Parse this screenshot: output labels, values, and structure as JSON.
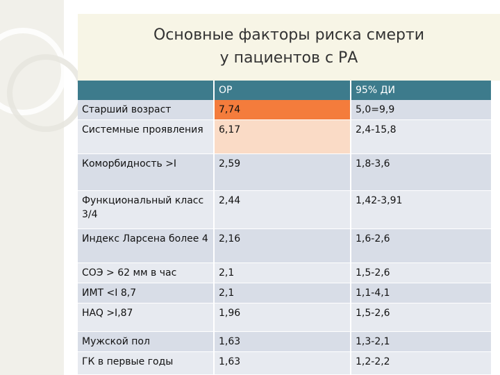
{
  "title_lines": [
    "Основные факторы риска смерти",
    "у пациентов с РА"
  ],
  "table": {
    "headers": [
      "",
      "ОР",
      "95% ДИ"
    ],
    "rows": [
      {
        "factor": "Старший возраст",
        "or": "7,74",
        "ci": "5,0=9,9"
      },
      {
        "factor": "Системные проявления",
        "or": "6,17",
        "ci": "2,4-15,8"
      },
      {
        "factor": "Коморбидность >I",
        "or": "2,59",
        "ci": "1,8-3,6"
      },
      {
        "factor": "Функциональный класс 3/4",
        "or": "2,44",
        "ci": "1,42-3,91"
      },
      {
        "factor": "Индекс Ларсена более 4",
        "or": "2,16",
        "ci": "1,6-2,6"
      },
      {
        "factor": "СОЭ > 62 мм в час",
        "or": "2,1",
        "ci": "1,5-2,6"
      },
      {
        "factor": "ИМТ <I 8,7",
        "or": "2,1",
        "ci": "1,1-4,1"
      },
      {
        "factor": "HAQ >I,87",
        "or": "1,96",
        "ci": "1,5-2,6"
      },
      {
        "factor": "Мужской пол",
        "or": "1,63",
        "ci": "1,3-2,1"
      },
      {
        "factor": "ГК в первые годы",
        "or": "1,63",
        "ci": "1,2-2,2"
      }
    ]
  },
  "colors": {
    "header": "#3d7b8c",
    "row_light": "#e7eaf0",
    "row_dark": "#d8dde7",
    "highlight_orange": "#f47c3c",
    "highlight_peach": "#fadbc6"
  }
}
